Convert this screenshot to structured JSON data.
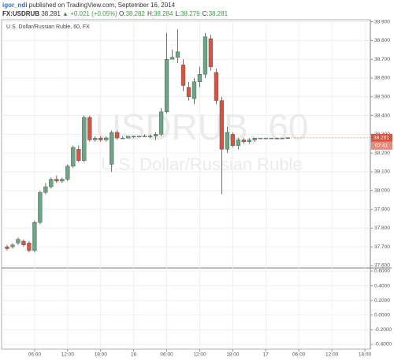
{
  "header": {
    "author": "igor_ndi",
    "published": "published on TradingView.com, September 16, 2014",
    "symbol": "FX:USDRUB",
    "price": "38.281",
    "change": "▲ +0.021 (+0.05%)",
    "fields": [
      {
        "label": "O:",
        "value": "38.282"
      },
      {
        "label": "H:",
        "value": "38.284"
      },
      {
        "label": "L:",
        "value": "38.279"
      },
      {
        "label": "C:",
        "value": "38.281"
      }
    ]
  },
  "chart_data": {
    "type": "candlestick",
    "title": "U.S. Dollar/Russian Ruble, 60, FX",
    "watermark": "USDRUB, 60",
    "watermark_subtitle": "U.S. Dollar/Russian Ruble",
    "up_color": "#6ba583",
    "down_color": "#d75442",
    "wick_color": "#4a4a4a",
    "grid": true,
    "x": [
      1,
      2,
      3,
      4,
      5,
      6,
      7,
      8,
      9,
      10,
      11,
      12,
      13,
      14,
      15,
      16,
      17,
      18,
      19,
      20,
      21,
      22,
      23,
      24,
      25,
      26,
      27,
      28,
      29,
      30,
      31,
      32,
      33,
      34,
      35,
      36,
      37,
      38,
      39,
      40,
      41,
      42,
      43,
      44,
      45,
      46,
      47,
      48,
      49,
      50,
      51,
      52
    ],
    "open": [
      37.7,
      37.7,
      37.72,
      37.73,
      37.72,
      37.68,
      37.83,
      37.99,
      38.02,
      38.06,
      38.05,
      38.06,
      38.13,
      38.22,
      38.16,
      38.39,
      38.27,
      38.28,
      38.27,
      38.14,
      38.31,
      38.28,
      38.28,
      38.29,
      38.29,
      38.29,
      38.29,
      38.29,
      38.3,
      38.42,
      38.7,
      38.71,
      38.67,
      38.55,
      38.49,
      38.58,
      38.62,
      38.81,
      38.63,
      38.48,
      38.22,
      38.3,
      38.24,
      38.27,
      38.26,
      38.27,
      38.28,
      38.28,
      38.28,
      38.28,
      38.28,
      38.282
    ],
    "high": [
      37.71,
      37.72,
      37.75,
      37.74,
      37.73,
      37.84,
      38.0,
      38.04,
      38.07,
      38.08,
      38.07,
      38.14,
      38.24,
      38.24,
      38.4,
      38.4,
      38.29,
      38.29,
      38.29,
      38.32,
      38.32,
      38.29,
      38.29,
      38.29,
      38.29,
      38.3,
      38.3,
      38.31,
      38.44,
      38.84,
      38.75,
      38.86,
      38.7,
      38.58,
      38.6,
      38.66,
      38.84,
      38.83,
      38.65,
      38.5,
      38.34,
      38.31,
      38.28,
      38.28,
      38.28,
      38.28,
      38.28,
      38.28,
      38.28,
      38.28,
      38.28,
      38.284
    ],
    "low": [
      37.68,
      37.69,
      37.71,
      37.7,
      37.67,
      37.67,
      37.82,
      37.98,
      38.01,
      38.04,
      38.04,
      38.05,
      38.12,
      38.15,
      38.15,
      38.26,
      38.26,
      38.26,
      38.26,
      38.1,
      38.27,
      38.28,
      38.28,
      38.28,
      38.29,
      38.29,
      38.28,
      38.27,
      38.29,
      38.41,
      38.7,
      38.68,
      38.53,
      38.48,
      38.46,
      38.55,
      38.6,
      38.64,
      38.46,
      37.98,
      38.2,
      38.23,
      38.22,
      38.25,
      38.25,
      38.26,
      38.28,
      38.28,
      38.28,
      38.28,
      38.28,
      38.279
    ],
    "close": [
      37.69,
      37.71,
      37.74,
      37.71,
      37.68,
      37.83,
      37.99,
      38.02,
      38.06,
      38.05,
      38.06,
      38.13,
      38.23,
      38.16,
      38.39,
      38.27,
      38.28,
      38.27,
      38.28,
      38.31,
      38.28,
      38.28,
      38.29,
      38.29,
      38.29,
      38.29,
      38.29,
      38.3,
      38.42,
      38.7,
      38.71,
      38.74,
      38.56,
      38.5,
      38.58,
      38.62,
      38.82,
      38.66,
      38.48,
      38.22,
      38.31,
      38.24,
      38.27,
      38.26,
      38.27,
      38.28,
      38.28,
      38.28,
      38.28,
      38.28,
      38.28,
      38.281
    ],
    "xlim": [
      0,
      67
    ],
    "xticks": [
      {
        "value": 6,
        "label": "06:00"
      },
      {
        "value": 12,
        "label": "12:00"
      },
      {
        "value": 18,
        "label": "18:00"
      },
      {
        "value": 24,
        "label": "16"
      },
      {
        "value": 30,
        "label": "06:00"
      },
      {
        "value": 36,
        "label": "12:00"
      },
      {
        "value": 42,
        "label": "18:00"
      },
      {
        "value": 48,
        "label": "17"
      },
      {
        "value": 54,
        "label": "06:00"
      },
      {
        "value": 60,
        "label": "12:00"
      },
      {
        "value": 66,
        "label": "18:00"
      }
    ],
    "ylim": [
      37.587,
      38.911
    ],
    "yticks": [
      {
        "value": 37.6,
        "label": "37.600"
      },
      {
        "value": 37.7,
        "label": "37.700"
      },
      {
        "value": 37.8,
        "label": "37.800"
      },
      {
        "value": 37.9,
        "label": "37.900"
      },
      {
        "value": 38.0,
        "label": "38.000"
      },
      {
        "value": 38.1,
        "label": "38.100"
      },
      {
        "value": 38.2,
        "label": "38.200"
      },
      {
        "value": 38.3,
        "label": "38.300"
      },
      {
        "value": 38.4,
        "label": "38.400"
      },
      {
        "value": 38.5,
        "label": "38.500"
      },
      {
        "value": 38.6,
        "label": "38.600"
      },
      {
        "value": 38.7,
        "label": "38.700"
      },
      {
        "value": 38.8,
        "label": "38.800"
      },
      {
        "value": 38.9,
        "label": "38.900"
      }
    ],
    "last_price": {
      "value": 38.281,
      "label": "38.281"
    },
    "countdown": "07:41",
    "lower_pane": {
      "ylim": [
        -0.465,
        0.643
      ],
      "yticks": [
        {
          "value": 0.6,
          "label": "0.6000"
        },
        {
          "value": 0.4,
          "label": "0.4000"
        },
        {
          "value": 0.2,
          "label": "0.2000"
        },
        {
          "value": 0,
          "label": "0.0000"
        },
        {
          "value": -0.2,
          "label": "-0.2000"
        },
        {
          "value": -0.4,
          "label": "-0.4000"
        }
      ]
    }
  }
}
